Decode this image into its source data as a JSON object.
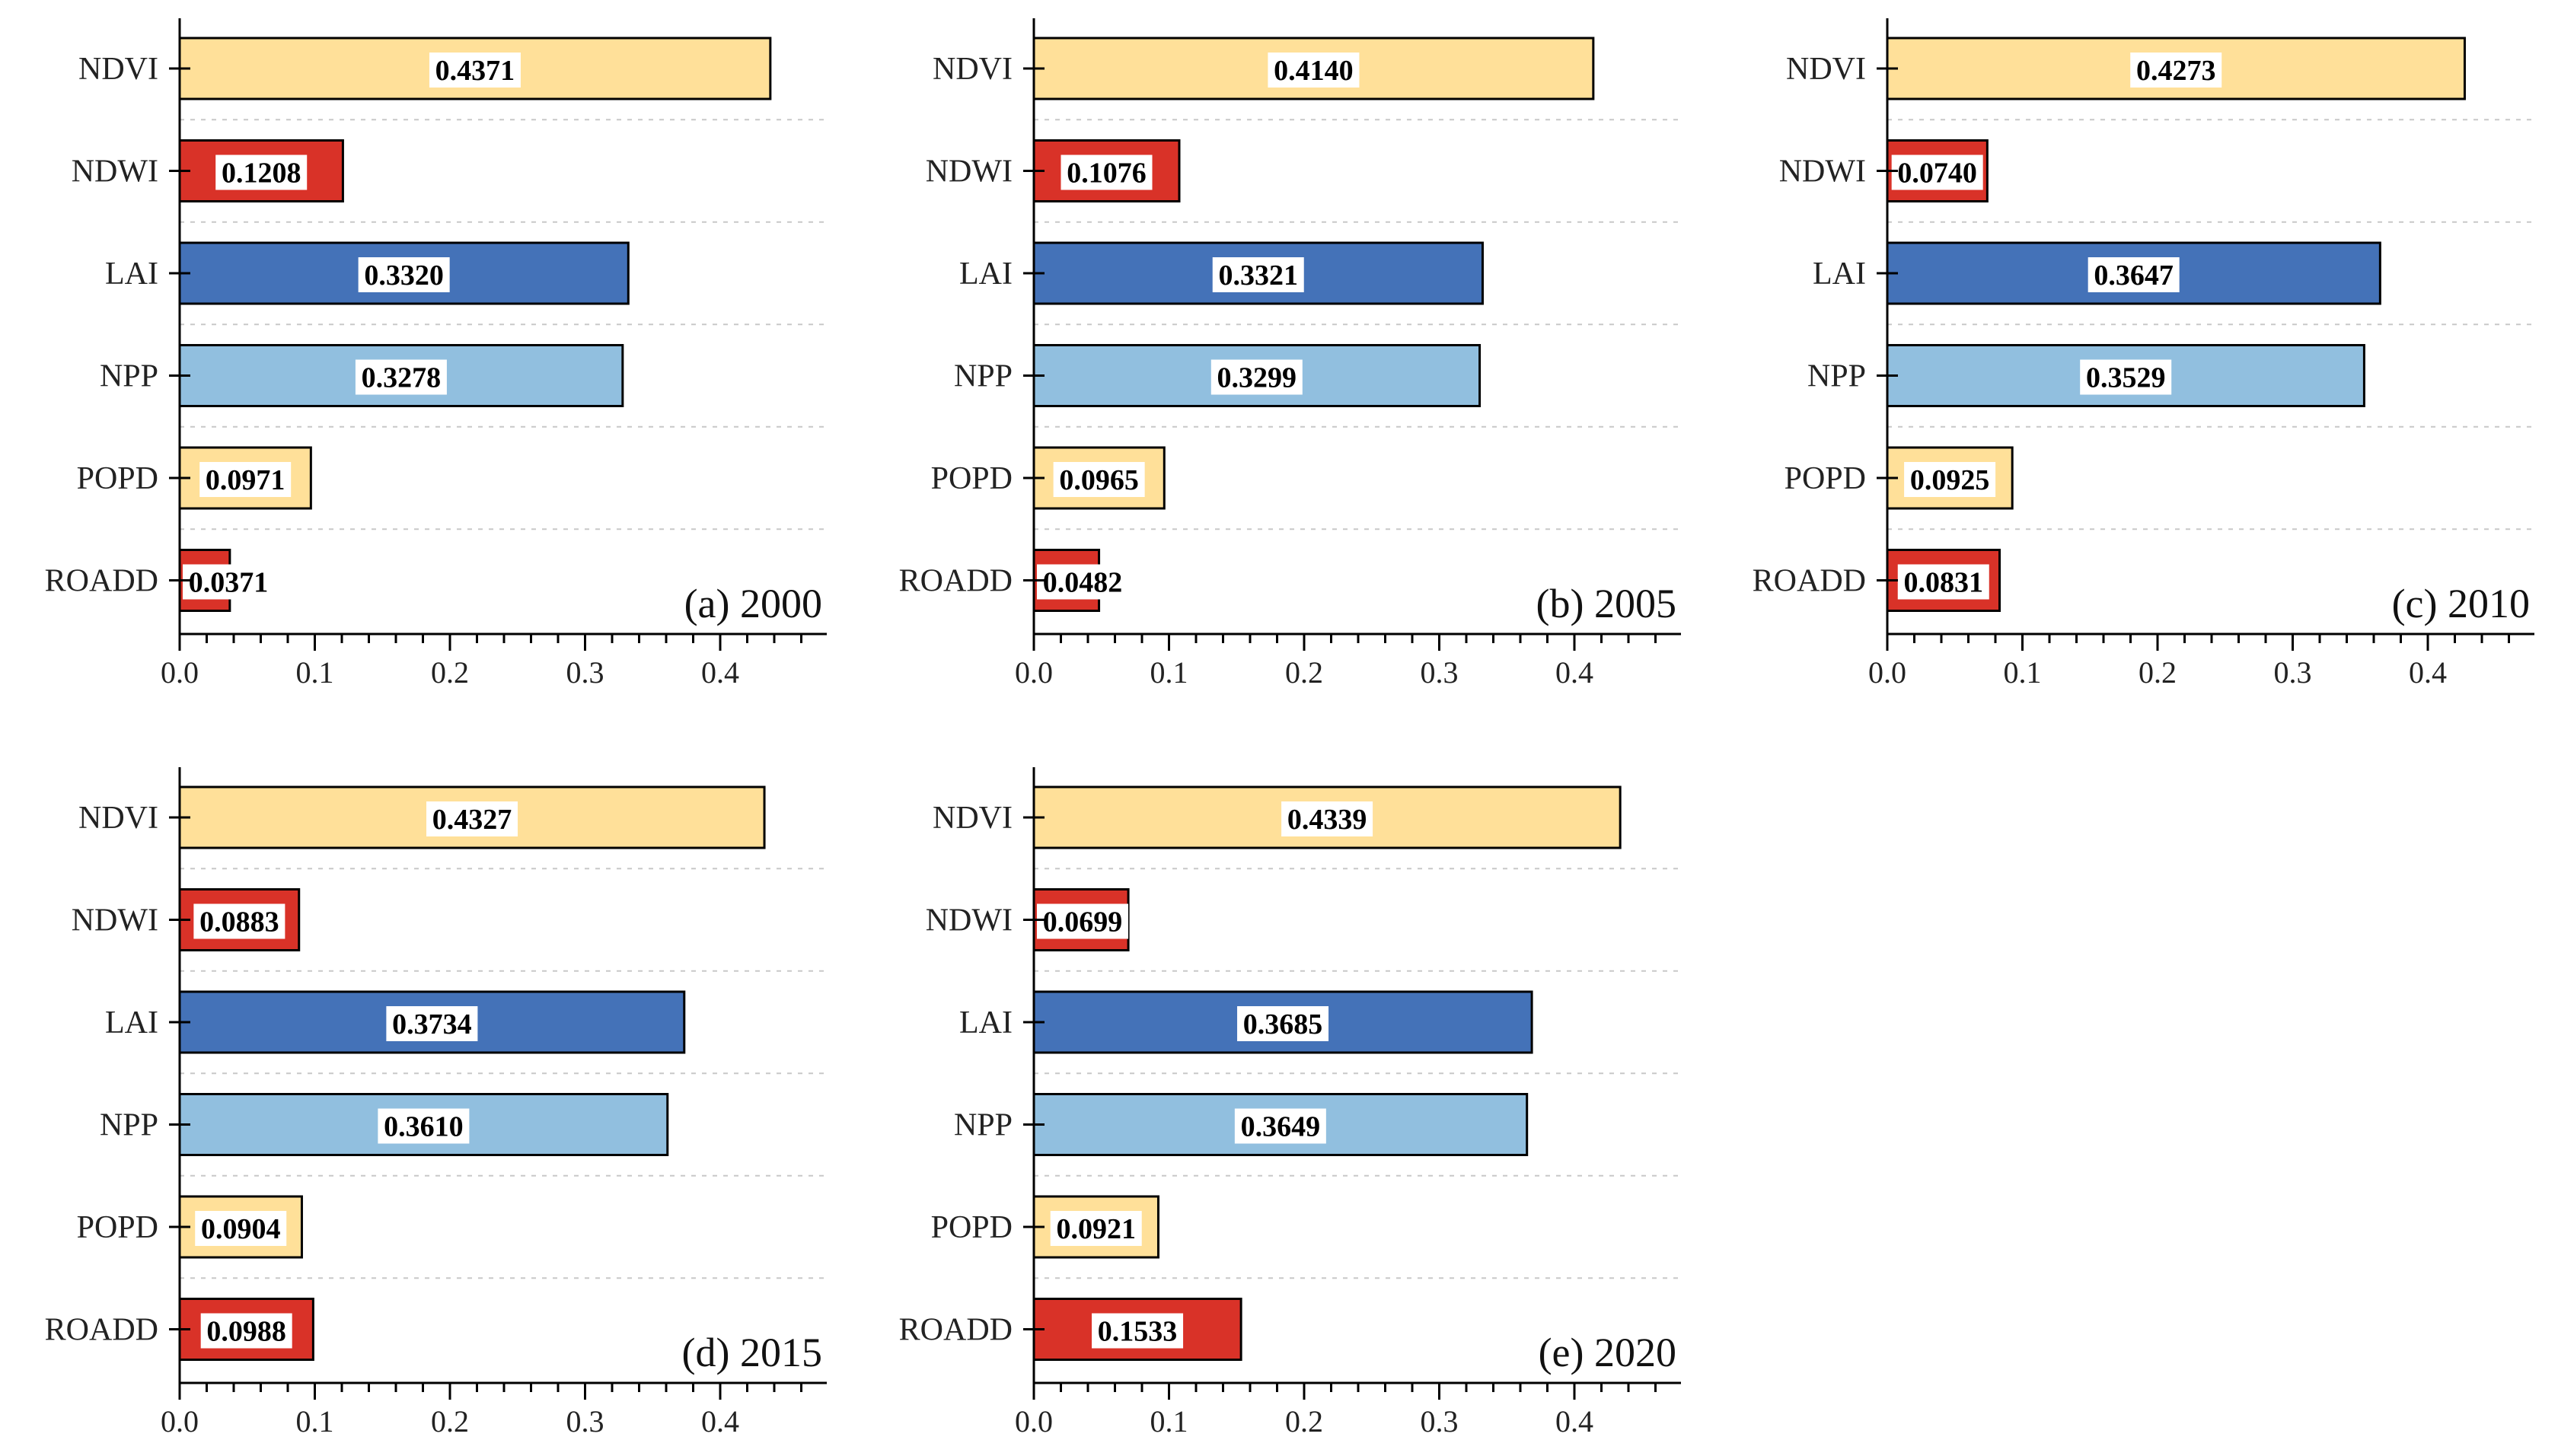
{
  "figure": {
    "colors": {
      "NDVI": "#FFE099",
      "NDWI": "#D93228",
      "LAI": "#4472B8",
      "NPP": "#91BFDF",
      "POPD": "#FFE099",
      "ROADD": "#D93228",
      "axis": "#000000",
      "grid": "#c8c8c8"
    }
  },
  "chart_data": [
    {
      "type": "bar",
      "orientation": "horizontal",
      "title": "(a) 2000",
      "categories": [
        "NDVI",
        "NDWI",
        "LAI",
        "NPP",
        "POPD",
        "ROADD"
      ],
      "values": [
        0.4371,
        0.1208,
        0.332,
        0.3278,
        0.0971,
        0.0371
      ],
      "value_labels": [
        "0.4371",
        "0.1208",
        "0.3320",
        "0.3278",
        "0.0971",
        "0.0371"
      ],
      "xticks": [
        "0.0",
        "0.1",
        "0.2",
        "0.3",
        "0.4"
      ],
      "xlim": [
        0,
        0.48
      ],
      "grid": "horizontal dashed"
    },
    {
      "type": "bar",
      "orientation": "horizontal",
      "title": "(b) 2005",
      "categories": [
        "NDVI",
        "NDWI",
        "LAI",
        "NPP",
        "POPD",
        "ROADD"
      ],
      "values": [
        0.414,
        0.1076,
        0.3321,
        0.3299,
        0.0965,
        0.0482
      ],
      "value_labels": [
        "0.4140",
        "0.1076",
        "0.3321",
        "0.3299",
        "0.0965",
        "0.0482"
      ],
      "xticks": [
        "0.0",
        "0.1",
        "0.2",
        "0.3",
        "0.4"
      ],
      "xlim": [
        0,
        0.48
      ],
      "grid": "horizontal dashed"
    },
    {
      "type": "bar",
      "orientation": "horizontal",
      "title": "(c) 2010",
      "categories": [
        "NDVI",
        "NDWI",
        "LAI",
        "NPP",
        "POPD",
        "ROADD"
      ],
      "values": [
        0.4273,
        0.074,
        0.3647,
        0.3529,
        0.0925,
        0.0831
      ],
      "value_labels": [
        "0.4273",
        "0.0740",
        "0.3647",
        "0.3529",
        "0.0925",
        "0.0831"
      ],
      "xticks": [
        "0.0",
        "0.1",
        "0.2",
        "0.3",
        "0.4"
      ],
      "xlim": [
        0,
        0.48
      ],
      "grid": "horizontal dashed"
    },
    {
      "type": "bar",
      "orientation": "horizontal",
      "title": "(d) 2015",
      "categories": [
        "NDVI",
        "NDWI",
        "LAI",
        "NPP",
        "POPD",
        "ROADD"
      ],
      "values": [
        0.4327,
        0.0883,
        0.3734,
        0.361,
        0.0904,
        0.0988
      ],
      "value_labels": [
        "0.4327",
        "0.0883",
        "0.3734",
        "0.3610",
        "0.0904",
        "0.0988"
      ],
      "xticks": [
        "0.0",
        "0.1",
        "0.2",
        "0.3",
        "0.4"
      ],
      "xlim": [
        0,
        0.48
      ],
      "grid": "horizontal dashed"
    },
    {
      "type": "bar",
      "orientation": "horizontal",
      "title": "(e) 2020",
      "categories": [
        "NDVI",
        "NDWI",
        "LAI",
        "NPP",
        "POPD",
        "ROADD"
      ],
      "values": [
        0.4339,
        0.0699,
        0.3685,
        0.3649,
        0.0921,
        0.1533
      ],
      "value_labels": [
        "0.4339",
        "0.0699",
        "0.3685",
        "0.3649",
        "0.0921",
        "0.1533"
      ],
      "xticks": [
        "0.0",
        "0.1",
        "0.2",
        "0.3",
        "0.4"
      ],
      "xlim": [
        0,
        0.48
      ],
      "grid": "horizontal dashed"
    }
  ]
}
